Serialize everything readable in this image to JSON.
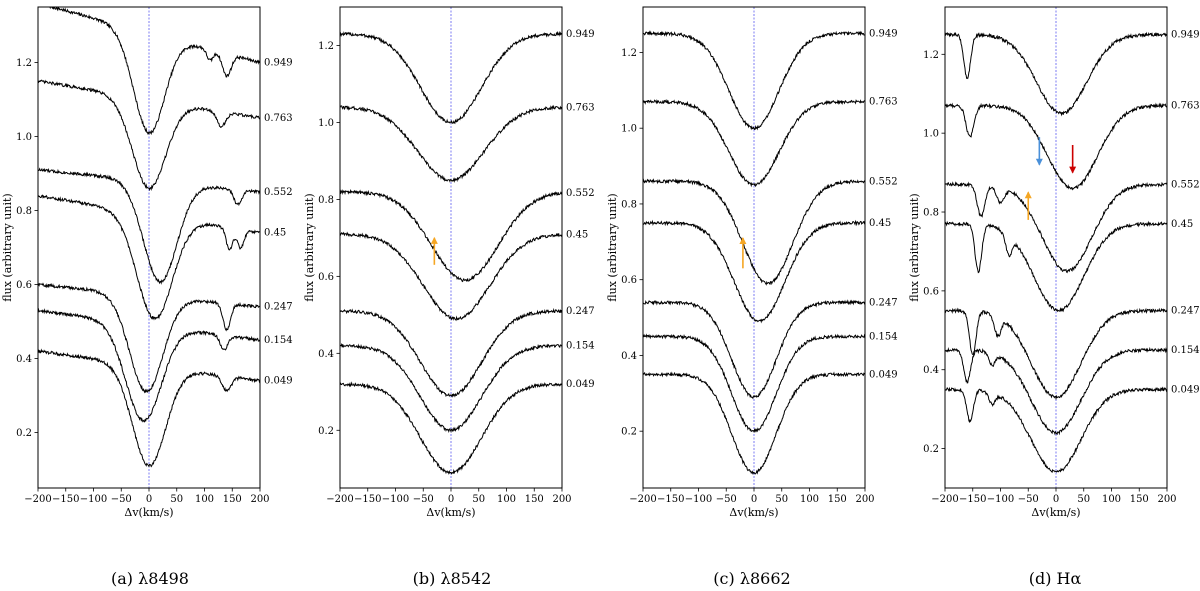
{
  "chart_data": [
    {
      "type": "line",
      "caption": "(a) λ8498",
      "xlabel": "Δv(km/s)",
      "ylabel": "flux (arbitrary unit)",
      "xlim": [
        -200,
        200
      ],
      "ylim": [
        0.05,
        1.35
      ],
      "xticks": [
        -200,
        -150,
        -100,
        -50,
        0,
        50,
        100,
        150,
        200
      ],
      "yticks": [
        0.2,
        0.4,
        0.6,
        0.8,
        1.0,
        1.2
      ],
      "ytick_labels": [
        "0.2",
        "0.4",
        "0.6",
        "0.8",
        "1.0",
        "1.2"
      ],
      "reference_line_x": 0,
      "series": [
        {
          "phase": "0.949",
          "baseline": 1.28,
          "center": 0,
          "depth": 0.27,
          "width": 28,
          "tilt": -0.08,
          "extra": [
            {
              "c": 140,
              "d": 0.06,
              "w": 8
            },
            {
              "c": 110,
              "d": 0.03,
              "w": 6
            }
          ]
        },
        {
          "phase": "0.763",
          "baseline": 1.1,
          "center": 0,
          "depth": 0.24,
          "width": 30,
          "tilt": -0.05,
          "extra": [
            {
              "c": 130,
              "d": 0.04,
              "w": 8
            }
          ]
        },
        {
          "phase": "0.552",
          "baseline": 0.88,
          "center": 20,
          "depth": 0.27,
          "width": 30,
          "tilt": -0.03,
          "extra": [
            {
              "c": 160,
              "d": 0.04,
              "w": 7
            }
          ]
        },
        {
          "phase": "0.45",
          "baseline": 0.79,
          "center": 10,
          "depth": 0.28,
          "width": 32,
          "tilt": -0.05,
          "extra": [
            {
              "c": 145,
              "d": 0.06,
              "w": 6
            },
            {
              "c": 165,
              "d": 0.05,
              "w": 6
            }
          ]
        },
        {
          "phase": "0.247",
          "baseline": 0.57,
          "center": -5,
          "depth": 0.26,
          "width": 30,
          "tilt": -0.03,
          "extra": [
            {
              "c": 140,
              "d": 0.07,
              "w": 7
            }
          ]
        },
        {
          "phase": "0.154",
          "baseline": 0.49,
          "center": -10,
          "depth": 0.26,
          "width": 32,
          "tilt": -0.04,
          "extra": [
            {
              "c": 135,
              "d": 0.04,
              "w": 7
            }
          ]
        },
        {
          "phase": "0.049",
          "baseline": 0.38,
          "center": 0,
          "depth": 0.27,
          "width": 30,
          "tilt": -0.04,
          "extra": [
            {
              "c": 140,
              "d": 0.04,
              "w": 8
            }
          ]
        }
      ],
      "arrows": []
    },
    {
      "type": "line",
      "caption": "(b) λ8542",
      "xlabel": "Δv(km/s)",
      "ylabel": "flux (arbitrary unit)",
      "xlim": [
        -200,
        200
      ],
      "ylim": [
        0.05,
        1.3
      ],
      "xticks": [
        -200,
        -150,
        -100,
        -50,
        0,
        50,
        100,
        150,
        200
      ],
      "yticks": [
        0.2,
        0.4,
        0.6,
        0.8,
        1.0,
        1.2
      ],
      "ytick_labels": [
        "0.2",
        "0.4",
        "0.6",
        "0.8",
        "1.0",
        "1.2"
      ],
      "reference_line_x": 0,
      "series": [
        {
          "phase": "0.949",
          "baseline": 1.23,
          "center": 0,
          "depth": 0.23,
          "width": 55,
          "tilt": 0.0,
          "extra": []
        },
        {
          "phase": "0.763",
          "baseline": 1.04,
          "center": 0,
          "depth": 0.19,
          "width": 60,
          "tilt": 0.0,
          "extra": []
        },
        {
          "phase": "0.552",
          "baseline": 0.82,
          "center": 25,
          "depth": 0.23,
          "width": 60,
          "tilt": 0.0,
          "extra": []
        },
        {
          "phase": "0.45",
          "baseline": 0.71,
          "center": 10,
          "depth": 0.22,
          "width": 60,
          "tilt": 0.0,
          "extra": []
        },
        {
          "phase": "0.247",
          "baseline": 0.51,
          "center": 0,
          "depth": 0.22,
          "width": 55,
          "tilt": 0.0,
          "extra": []
        },
        {
          "phase": "0.154",
          "baseline": 0.42,
          "center": 0,
          "depth": 0.22,
          "width": 55,
          "tilt": 0.0,
          "extra": []
        },
        {
          "phase": "0.049",
          "baseline": 0.32,
          "center": 0,
          "depth": 0.23,
          "width": 55,
          "tilt": 0.0,
          "extra": []
        }
      ],
      "arrows": [
        {
          "color": "#f5a623",
          "x": -30,
          "y_from": 0.63,
          "y_to": 0.7
        }
      ]
    },
    {
      "type": "line",
      "caption": "(c) λ8662",
      "xlabel": "Δv(km/s)",
      "ylabel": "flux (arbitrary unit)",
      "xlim": [
        -200,
        200
      ],
      "ylim": [
        0.05,
        1.32
      ],
      "xticks": [
        -200,
        -150,
        -100,
        -50,
        0,
        50,
        100,
        150,
        200
      ],
      "yticks": [
        0.2,
        0.4,
        0.6,
        0.8,
        1.0,
        1.2
      ],
      "ytick_labels": [
        "0.2",
        "0.4",
        "0.6",
        "0.8",
        "1.0",
        "1.2"
      ],
      "reference_line_x": 0,
      "series": [
        {
          "phase": "0.949",
          "baseline": 1.25,
          "center": 0,
          "depth": 0.25,
          "width": 45,
          "tilt": 0.0,
          "extra": []
        },
        {
          "phase": "0.763",
          "baseline": 1.07,
          "center": 0,
          "depth": 0.22,
          "width": 45,
          "tilt": 0.0,
          "extra": []
        },
        {
          "phase": "0.552",
          "baseline": 0.86,
          "center": 25,
          "depth": 0.27,
          "width": 45,
          "tilt": 0.0,
          "extra": []
        },
        {
          "phase": "0.45",
          "baseline": 0.75,
          "center": 10,
          "depth": 0.26,
          "width": 45,
          "tilt": 0.0,
          "extra": []
        },
        {
          "phase": "0.247",
          "baseline": 0.54,
          "center": 0,
          "depth": 0.25,
          "width": 40,
          "tilt": 0.0,
          "extra": []
        },
        {
          "phase": "0.154",
          "baseline": 0.45,
          "center": 0,
          "depth": 0.25,
          "width": 40,
          "tilt": 0.0,
          "extra": []
        },
        {
          "phase": "0.049",
          "baseline": 0.35,
          "center": 0,
          "depth": 0.26,
          "width": 40,
          "tilt": 0.0,
          "extra": []
        }
      ],
      "arrows": [
        {
          "color": "#f5a623",
          "x": -20,
          "y_from": 0.63,
          "y_to": 0.71
        }
      ]
    },
    {
      "type": "line",
      "caption": "(d) Hα",
      "xlabel": "Δv(km/s)",
      "ylabel": "flux (arbitrary unit)",
      "xlim": [
        -200,
        200
      ],
      "ylim": [
        0.1,
        1.32
      ],
      "xticks": [
        -200,
        -150,
        -100,
        -50,
        0,
        50,
        100,
        150,
        200
      ],
      "yticks": [
        0.2,
        0.4,
        0.6,
        0.8,
        1.0,
        1.2
      ],
      "ytick_labels": [
        "0.2",
        "0.4",
        "0.6",
        "0.8",
        "1.0",
        "1.2"
      ],
      "reference_line_x": 0,
      "series": [
        {
          "phase": "0.949",
          "baseline": 1.25,
          "center": 10,
          "depth": 0.2,
          "width": 45,
          "tilt": 0.0,
          "extra": [
            {
              "c": -160,
              "d": 0.11,
              "w": 6
            }
          ]
        },
        {
          "phase": "0.763",
          "baseline": 1.07,
          "center": 30,
          "depth": 0.21,
          "width": 45,
          "tilt": 0.0,
          "extra": [
            {
              "c": -155,
              "d": 0.08,
              "w": 7
            }
          ]
        },
        {
          "phase": "0.552",
          "baseline": 0.87,
          "center": 20,
          "depth": 0.22,
          "width": 45,
          "tilt": 0.0,
          "extra": [
            {
              "c": -135,
              "d": 0.08,
              "w": 7
            },
            {
              "c": -100,
              "d": 0.04,
              "w": 7
            }
          ]
        },
        {
          "phase": "0.45",
          "baseline": 0.77,
          "center": 5,
          "depth": 0.22,
          "width": 45,
          "tilt": 0.0,
          "extra": [
            {
              "c": -140,
              "d": 0.12,
              "w": 6
            },
            {
              "c": -85,
              "d": 0.05,
              "w": 6
            }
          ]
        },
        {
          "phase": "0.247",
          "baseline": 0.55,
          "center": 0,
          "depth": 0.22,
          "width": 45,
          "tilt": 0.0,
          "extra": [
            {
              "c": -150,
              "d": 0.11,
              "w": 6
            },
            {
              "c": -105,
              "d": 0.05,
              "w": 6
            }
          ]
        },
        {
          "phase": "0.154",
          "baseline": 0.45,
          "center": 0,
          "depth": 0.21,
          "width": 45,
          "tilt": 0.0,
          "extra": [
            {
              "c": -160,
              "d": 0.08,
              "w": 6
            },
            {
              "c": -115,
              "d": 0.03,
              "w": 6
            }
          ]
        },
        {
          "phase": "0.049",
          "baseline": 0.35,
          "center": 0,
          "depth": 0.21,
          "width": 45,
          "tilt": 0.0,
          "extra": [
            {
              "c": -155,
              "d": 0.08,
              "w": 6
            },
            {
              "c": -115,
              "d": 0.03,
              "w": 6
            }
          ]
        }
      ],
      "arrows": [
        {
          "color": "#4a90d9",
          "x": -30,
          "y_from": 0.99,
          "y_to": 0.92
        },
        {
          "color": "#cc0000",
          "x": 30,
          "y_from": 0.97,
          "y_to": 0.9
        },
        {
          "color": "#f5a623",
          "x": -50,
          "y_from": 0.78,
          "y_to": 0.85
        }
      ]
    }
  ],
  "colors": {
    "line": "#000000",
    "reference_line": "#5b5bf0",
    "frame": "#000000"
  }
}
